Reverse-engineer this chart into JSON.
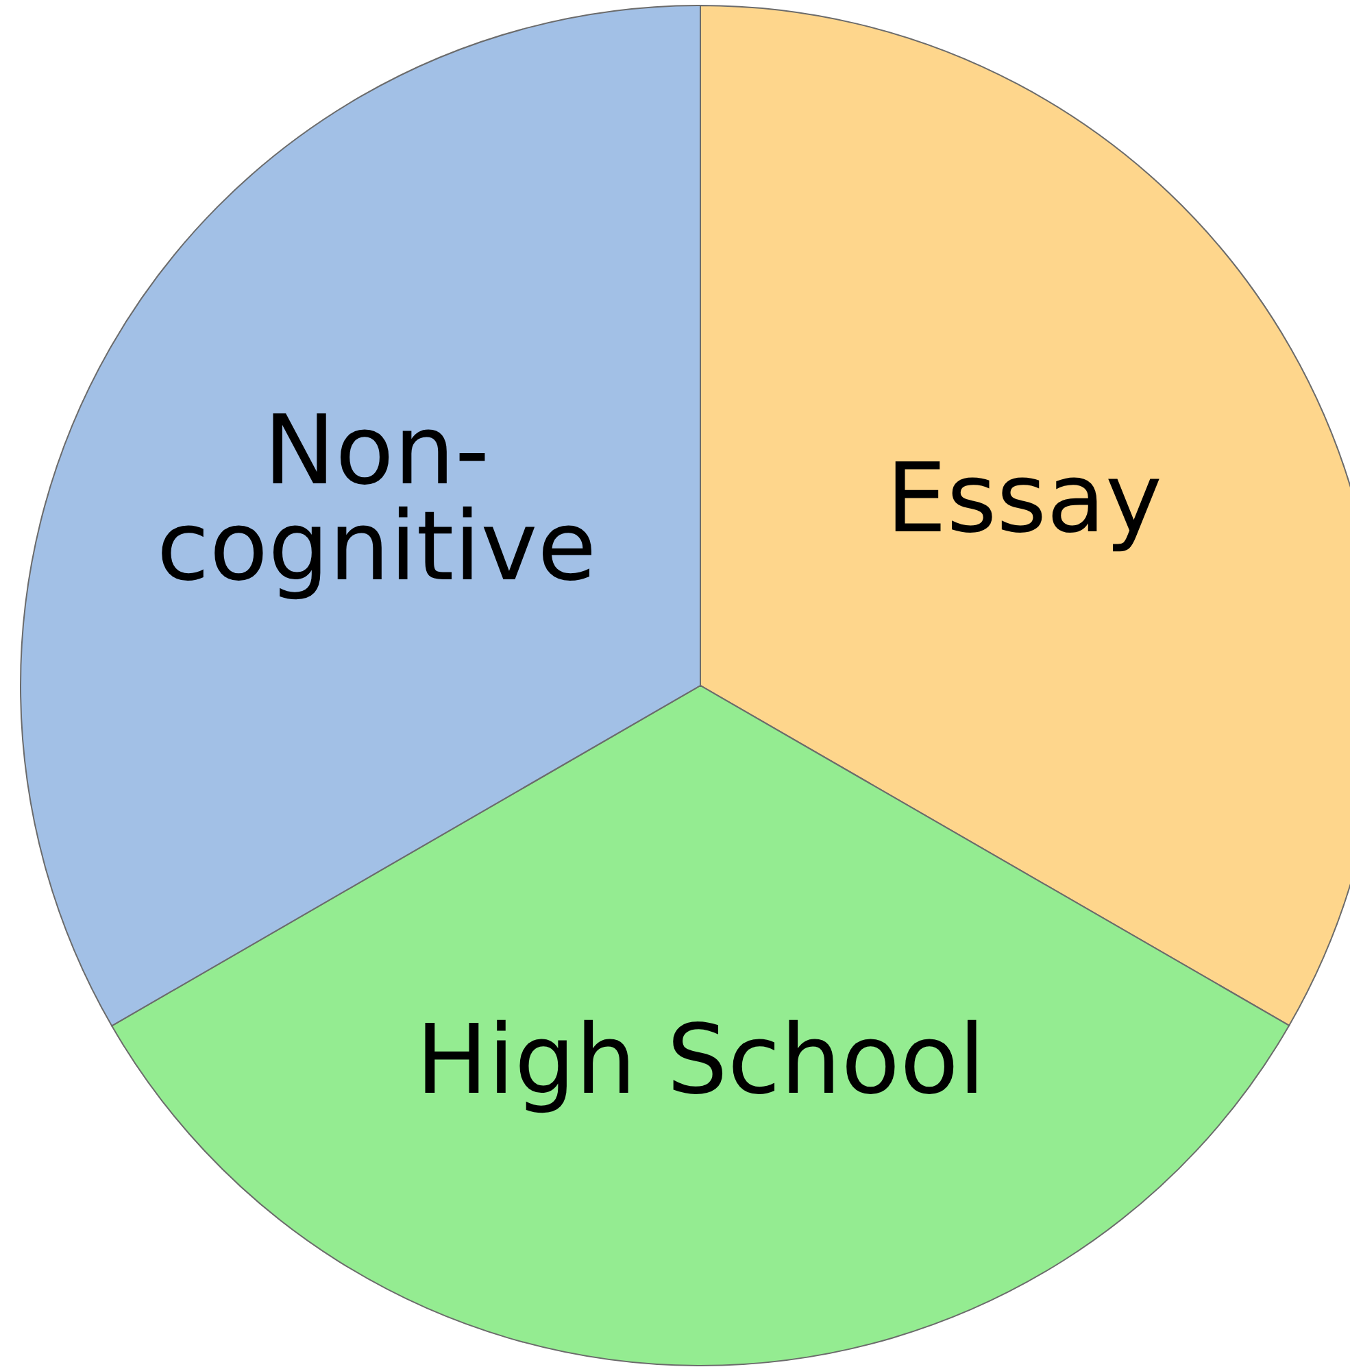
{
  "chart_data": {
    "type": "pie",
    "categories": [
      "Essay",
      "High School",
      "Non-cognitive"
    ],
    "values": [
      33.33,
      33.33,
      33.34
    ],
    "colors": [
      "#fed68c",
      "#94ec91",
      "#a2c0e6"
    ]
  }
}
